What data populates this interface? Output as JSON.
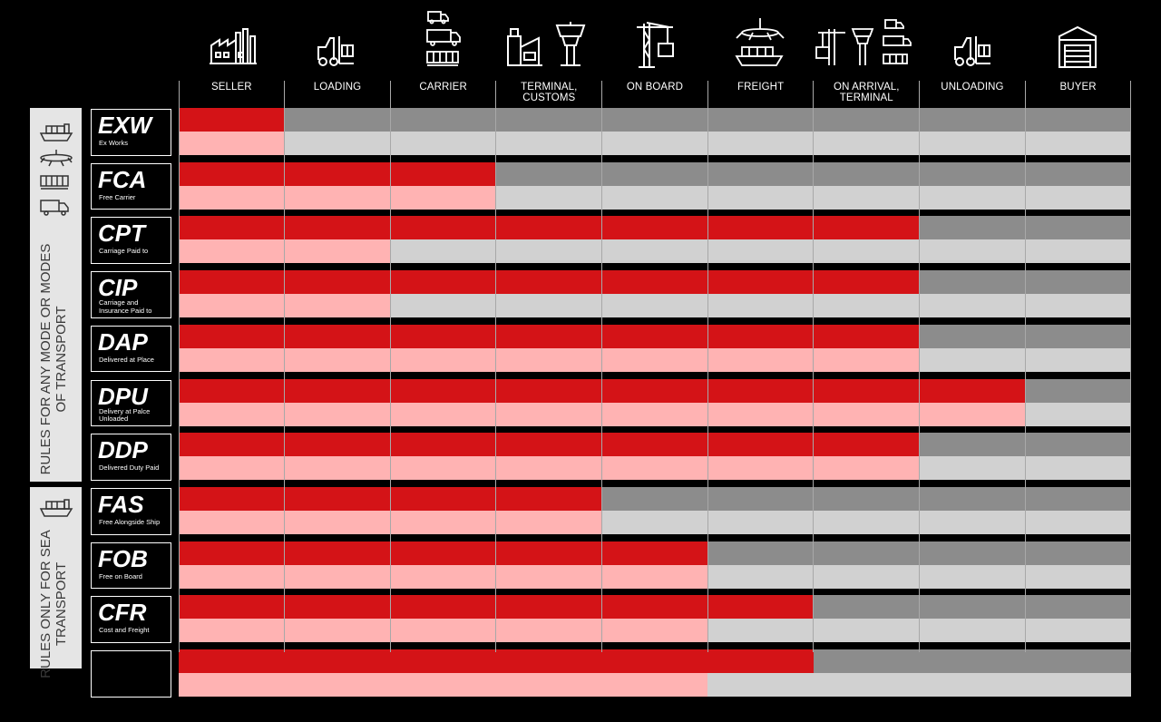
{
  "columns": [
    "SELLER",
    "LOADING",
    "CARRIER",
    "TERMINAL, CUSTOMS",
    "ON BOARD",
    "FREIGHT",
    "ON ARRIVAL, TERMINAL",
    "UNLOADING",
    "BUYER"
  ],
  "column_icons": [
    "factory-icon",
    "forklift-icon",
    "truck-stack-icon",
    "terminal-customs-icon",
    "port-crane-icon",
    "freight-plane-ship-icon",
    "arrival-terminal-icon",
    "forklift-icon",
    "warehouse-icon"
  ],
  "groups": [
    {
      "label_lines": [
        "RULES FOR ANY MODE OR MODES",
        "OF TRANSPORT"
      ],
      "icons": [
        "ship-icon",
        "plane-icon",
        "train-icon",
        "truck-icon"
      ]
    },
    {
      "label_lines": [
        "RULES ONLY FOR SEA",
        "TRANSPORT"
      ],
      "icons": [
        "ship-icon"
      ]
    }
  ],
  "colors": {
    "seller_cost": "#d41317",
    "buyer_cost": "#8c8c8c",
    "seller_risk": "#ffb3b3",
    "buyer_risk": "#d1d1d1",
    "background": "#000000",
    "panel": "#e5e5e5"
  },
  "rows": [
    {
      "code": "EXW",
      "desc": [
        "Ex Works"
      ],
      "cost_cols": 1,
      "risk_cols": 1
    },
    {
      "code": "FCA",
      "desc": [
        "Free Carrier"
      ],
      "cost_cols": 3,
      "risk_cols": 3
    },
    {
      "code": "CPT",
      "desc": [
        "Carriage Paid to"
      ],
      "cost_cols": 7,
      "risk_cols": 2
    },
    {
      "code": "CIP",
      "desc": [
        "Carriage and",
        "Insurance Paid to"
      ],
      "cost_cols": 7,
      "risk_cols": 2
    },
    {
      "code": "DAP",
      "desc": [
        "Delivered at Place"
      ],
      "cost_cols": 7,
      "risk_cols": 7
    },
    {
      "code": "DPU",
      "desc": [
        "Delivery at Palce",
        "Unloaded"
      ],
      "cost_cols": 8,
      "risk_cols": 8
    },
    {
      "code": "DDP",
      "desc": [
        "Delivered Duty Paid"
      ],
      "cost_cols": 7,
      "risk_cols": 7
    },
    {
      "code": "FAS",
      "desc": [
        "Free Alongside Ship"
      ],
      "cost_cols": 4,
      "risk_cols": 4
    },
    {
      "code": "FOB",
      "desc": [
        "Free on Board"
      ],
      "cost_cols": 5,
      "risk_cols": 5
    },
    {
      "code": "CFR",
      "desc": [
        "Cost and Freight"
      ],
      "cost_cols": 6,
      "risk_cols": 5
    },
    {
      "code": "",
      "desc": [],
      "cost_cols": 6,
      "risk_cols": 5
    }
  ]
}
